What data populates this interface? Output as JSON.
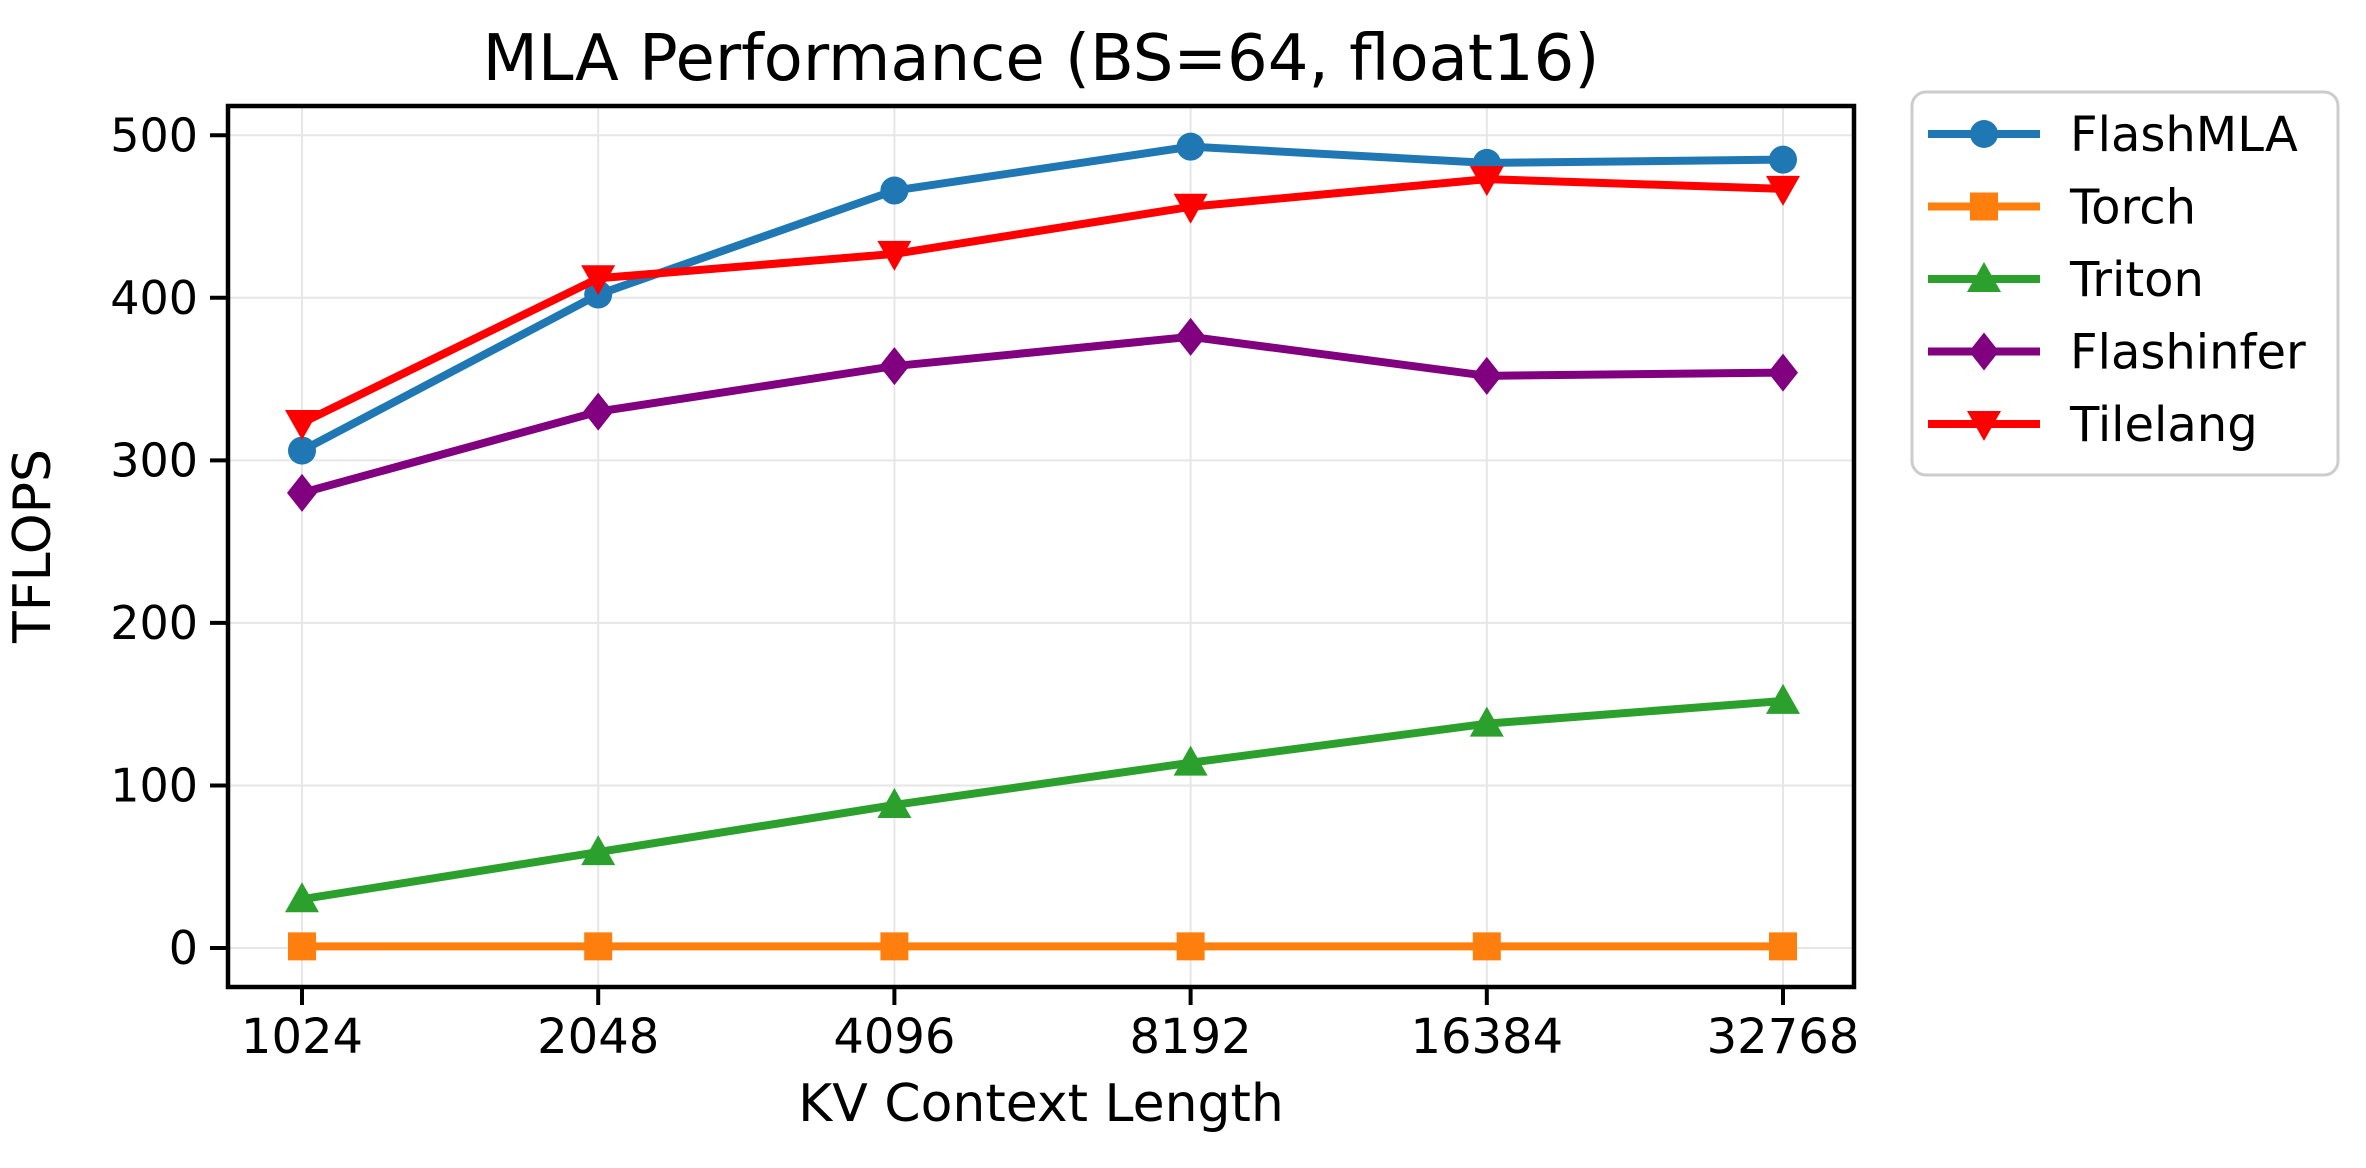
{
  "chart_data": {
    "type": "line",
    "title": "MLA Performance (BS=64, float16)",
    "xlabel": "KV Context Length",
    "ylabel": "TFLOPS",
    "categories": [
      "1024",
      "2048",
      "4096",
      "8192",
      "16384",
      "32768"
    ],
    "y_ticks": [
      0,
      100,
      200,
      300,
      400,
      500
    ],
    "ylim": [
      -24,
      518
    ],
    "grid": true,
    "legend_position": "outside-right",
    "series": [
      {
        "name": "FlashMLA",
        "color": "#1f77b4",
        "marker": "circle",
        "values": [
          306,
          402,
          466,
          493,
          483,
          485
        ]
      },
      {
        "name": "Torch",
        "color": "#ff7f0e",
        "marker": "square",
        "values": [
          1,
          1,
          1,
          1,
          1,
          1
        ]
      },
      {
        "name": "Triton",
        "color": "#2ca02c",
        "marker": "triangle-up",
        "values": [
          30,
          59,
          88,
          114,
          138,
          152
        ]
      },
      {
        "name": "Flashinfer",
        "color": "#800080",
        "marker": "diamond",
        "values": [
          280,
          330,
          358,
          376,
          352,
          354
        ]
      },
      {
        "name": "Tilelang",
        "color": "#ff0000",
        "marker": "triangle-down",
        "values": [
          323,
          412,
          427,
          456,
          473,
          467
        ]
      }
    ],
    "style": {
      "grid_color": "#e6e6e6",
      "spine_color": "#000000",
      "legend_border_color": "#cccccc",
      "background": "#ffffff"
    }
  }
}
